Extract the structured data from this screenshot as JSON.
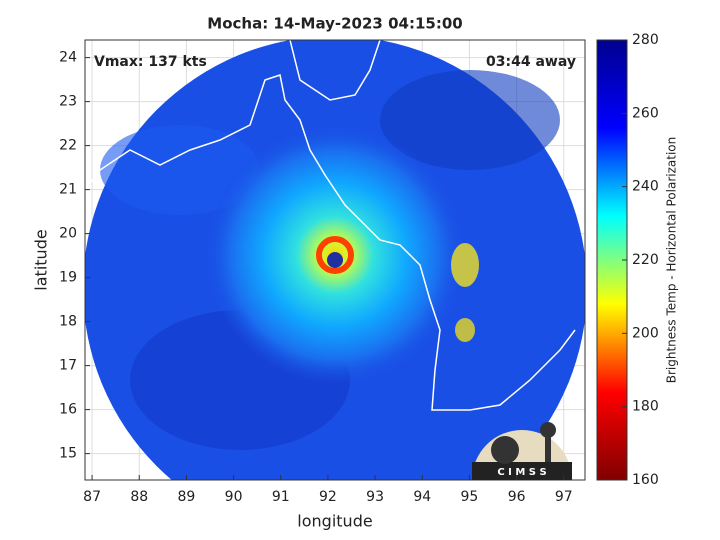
{
  "chart_data": {
    "type": "map",
    "title": "Mocha: 14-May-2023 04:15:00",
    "annotations": [
      "Vmax: 137 kts",
      "03:44 away"
    ],
    "xlabel": "longitude",
    "ylabel": "latitude",
    "xlim": [
      86.85,
      97.45
    ],
    "ylim": [
      14.4,
      24.4
    ],
    "xticks": [
      87,
      88,
      89,
      90,
      91,
      92,
      93,
      94,
      95,
      96,
      97
    ],
    "yticks": [
      15,
      16,
      17,
      18,
      19,
      20,
      21,
      22,
      23,
      24
    ],
    "grid": true,
    "colorbar": {
      "label": "Brightness Temp - Horizontal Polarization",
      "lim": [
        160,
        280
      ],
      "ticks": [
        160,
        180,
        200,
        220,
        240,
        260,
        280
      ],
      "colors": [
        "#800000",
        "#ff0000",
        "#ffff00",
        "#00ffff",
        "#0000ff",
        "#00008f"
      ]
    },
    "logo": "C I M S S"
  }
}
